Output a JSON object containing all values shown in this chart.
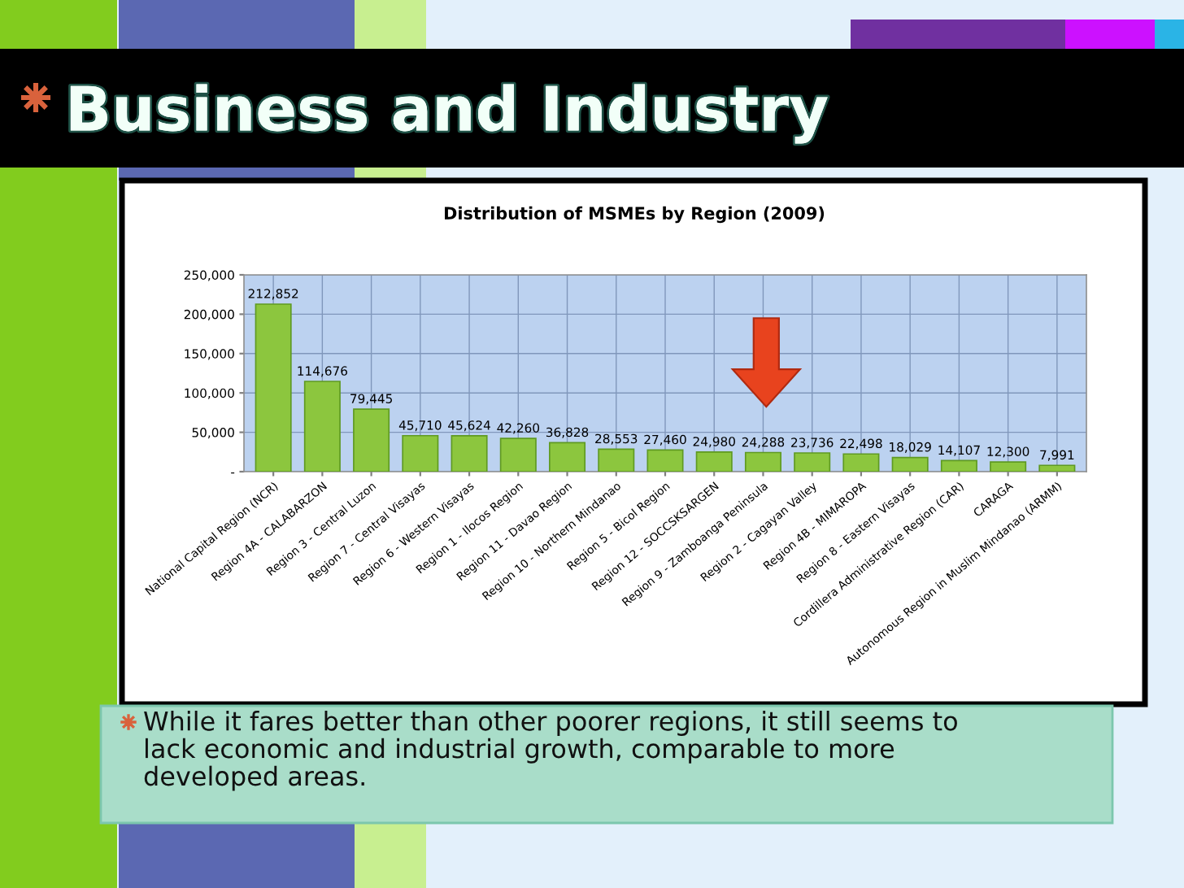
{
  "chart_data": {
    "type": "bar",
    "title": "Business and Industry",
    "subtitle": "Distribution of MSMEs by Region (2009)",
    "categories": [
      "National Capital Region (NCR)",
      "Region 4A - CALABARZON",
      "Region 3 - Central Luzon",
      "Region 7 - Central Visayas",
      "Region 6 - Western Visayas",
      "Region 1 - Ilocos Region",
      "Region 11 - Davao Region",
      "Region 10 - Northern Mindanao",
      "Region 5 - Bicol Region",
      "Region 12 - SOCCSKSARGEN",
      "Region 9 - Zamboanga Peninsula",
      "Region 2 - Cagayan Valley",
      "Region 4B - MIMAROPA",
      "Region 8 - Eastern Visayas",
      "Cordillera Administrative Region (CAR)",
      "CARAGA",
      "Autonomous Region in Muslim Mindanao (ARMM)"
    ],
    "values": [
      212852,
      114676,
      79445,
      45710,
      45624,
      42260,
      36828,
      28553,
      27460,
      24980,
      24288,
      23736,
      22498,
      18029,
      14107,
      12300,
      7991
    ],
    "value_labels": [
      "212,852",
      "114,676",
      "79,445",
      "45,710",
      "45,624",
      "42,260",
      "36,828",
      "28,553",
      "27,460",
      "24,980",
      "24,288",
      "23,736",
      "22,498",
      "18,029",
      "14,107",
      "12,300",
      "7,991"
    ],
    "color": "#8cc63e",
    "ylim": [
      0,
      250000
    ],
    "yticks": [
      {
        "value": 0,
        "label": "-"
      },
      {
        "value": 50000,
        "label": "50,000"
      },
      {
        "value": 100000,
        "label": "100,000"
      },
      {
        "value": 150000,
        "label": "150,000"
      },
      {
        "value": 200000,
        "label": "200,000"
      },
      {
        "value": 250000,
        "label": "250,000"
      }
    ],
    "grid": true,
    "annotations": [
      "While it fares better than other poorer regions, it still seems to\nlack economic and industrial growth, comparable to more\ndeveloped areas."
    ]
  }
}
